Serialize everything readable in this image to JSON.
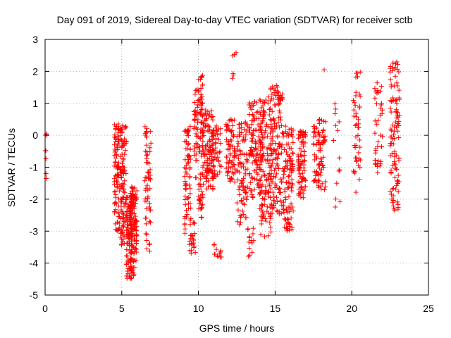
{
  "chart_data": {
    "type": "scatter",
    "title": "Day 091 of 2019, Sidereal Day-to-day VTEC variation (SDTVAR) for receiver sctb",
    "xlabel": "GPS time / hours",
    "ylabel": "SDTVAR / TECUs",
    "xlim": [
      0,
      25
    ],
    "ylim": [
      -5,
      3
    ],
    "xticks": [
      "0",
      "5",
      "10",
      "15",
      "20",
      "25"
    ],
    "yticks": [
      "-5",
      "-4",
      "-3",
      "-2",
      "-1",
      "0",
      "1",
      "2",
      "3"
    ],
    "grid": true,
    "marker": "+",
    "color": "#ff0000",
    "clusters": [
      {
        "x": [
          0.0,
          0.1
        ],
        "y": [
          -1.4,
          0.3
        ],
        "n": 8
      },
      {
        "x": [
          4.5,
          4.85
        ],
        "y": [
          -3.0,
          0.4
        ],
        "n": 90
      },
      {
        "x": [
          4.9,
          5.3
        ],
        "y": [
          -3.5,
          0.35
        ],
        "n": 110
      },
      {
        "x": [
          5.3,
          5.65
        ],
        "y": [
          -4.5,
          -1.8
        ],
        "n": 110
      },
      {
        "x": [
          5.6,
          6.0
        ],
        "y": [
          -4.4,
          -1.6
        ],
        "n": 110
      },
      {
        "x": [
          6.5,
          6.9
        ],
        "y": [
          -3.7,
          0.3
        ],
        "n": 60
      },
      {
        "x": [
          9.1,
          9.5
        ],
        "y": [
          -3.2,
          0.3
        ],
        "n": 70
      },
      {
        "x": [
          9.4,
          9.8
        ],
        "y": [
          -3.7,
          -2.6
        ],
        "n": 25
      },
      {
        "x": [
          9.7,
          10.0
        ],
        "y": [
          -1.4,
          1.5
        ],
        "n": 40
      },
      {
        "x": [
          10.0,
          10.3
        ],
        "y": [
          -2.6,
          1.9
        ],
        "n": 80
      },
      {
        "x": [
          10.3,
          11.0
        ],
        "y": [
          -1.7,
          0.8
        ],
        "n": 110
      },
      {
        "x": [
          11.0,
          11.5
        ],
        "y": [
          -3.9,
          -3.4
        ],
        "n": 12
      },
      {
        "x": [
          10.9,
          11.5
        ],
        "y": [
          -1.3,
          0.3
        ],
        "n": 40
      },
      {
        "x": [
          11.8,
          12.4
        ],
        "y": [
          -1.5,
          0.5
        ],
        "n": 70
      },
      {
        "x": [
          12.2,
          12.5
        ],
        "y": [
          1.7,
          2.6
        ],
        "n": 6
      },
      {
        "x": [
          12.5,
          13.2
        ],
        "y": [
          -2.8,
          0.5
        ],
        "n": 90
      },
      {
        "x": [
          13.2,
          13.6
        ],
        "y": [
          -3.9,
          -2.8
        ],
        "n": 14
      },
      {
        "x": [
          13.3,
          14.2
        ],
        "y": [
          -2.0,
          1.1
        ],
        "n": 120
      },
      {
        "x": [
          14.0,
          14.8
        ],
        "y": [
          -3.2,
          1.2
        ],
        "n": 130
      },
      {
        "x": [
          14.7,
          15.5
        ],
        "y": [
          -2.5,
          1.6
        ],
        "n": 130
      },
      {
        "x": [
          15.5,
          16.2
        ],
        "y": [
          -3.0,
          0.3
        ],
        "n": 110
      },
      {
        "x": [
          16.5,
          17.0
        ],
        "y": [
          -2.0,
          0.2
        ],
        "n": 80
      },
      {
        "x": [
          17.5,
          17.9
        ],
        "y": [
          -1.5,
          0.4
        ],
        "n": 40
      },
      {
        "x": [
          17.8,
          18.3
        ],
        "y": [
          -1.9,
          0.5
        ],
        "n": 50
      },
      {
        "x": [
          18.1,
          18.3
        ],
        "y": [
          2.0,
          2.1
        ],
        "n": 1
      },
      {
        "x": [
          18.8,
          19.3
        ],
        "y": [
          -2.3,
          1.0
        ],
        "n": 14
      },
      {
        "x": [
          20.1,
          20.6
        ],
        "y": [
          -1.8,
          2.0
        ],
        "n": 45
      },
      {
        "x": [
          21.5,
          22.0
        ],
        "y": [
          -1.3,
          1.7
        ],
        "n": 40
      },
      {
        "x": [
          22.5,
          23.1
        ],
        "y": [
          -2.4,
          2.4
        ],
        "n": 110
      }
    ]
  }
}
